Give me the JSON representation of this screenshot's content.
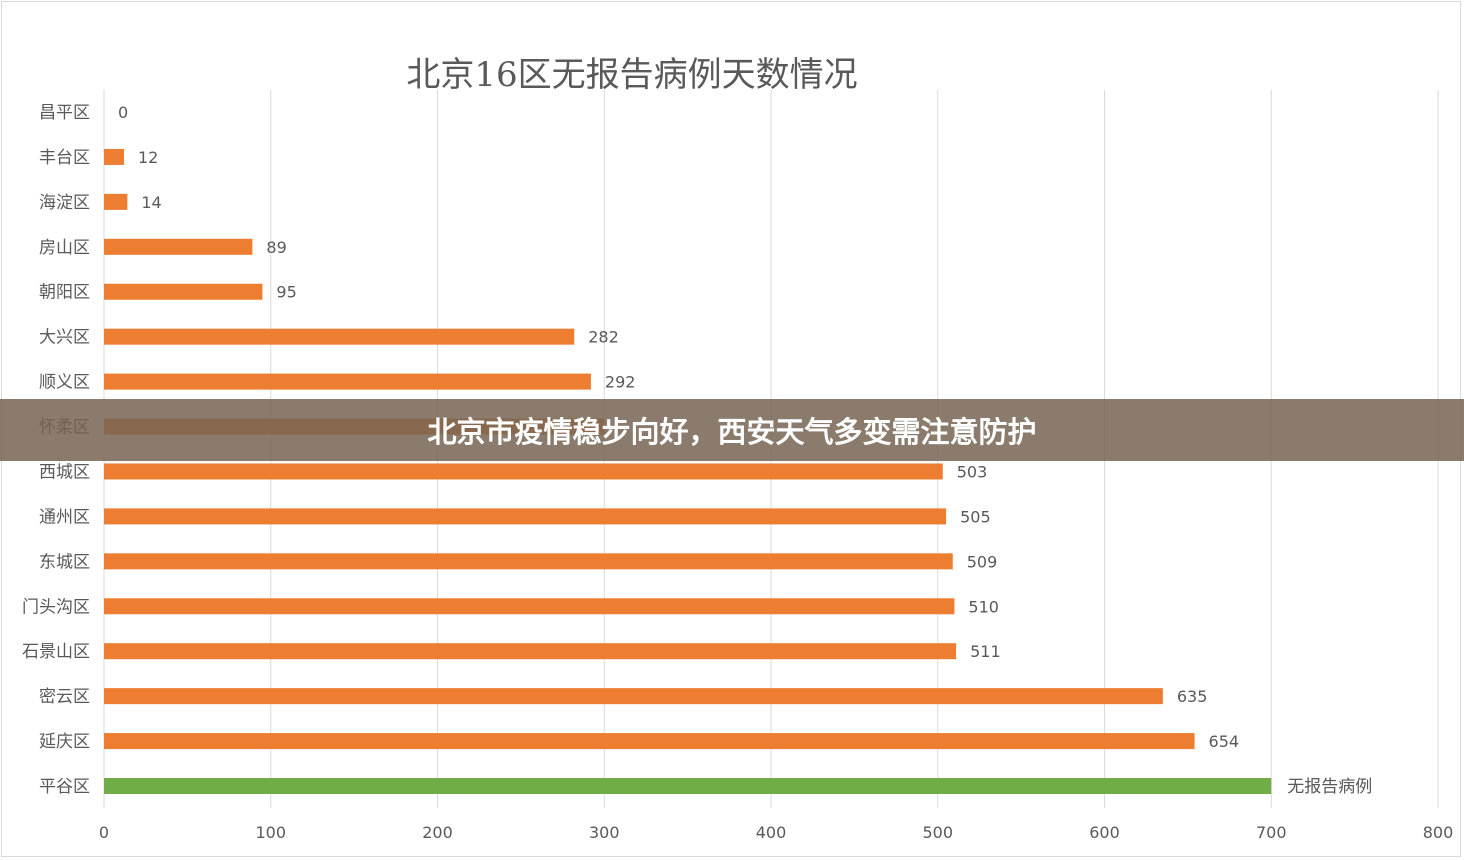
{
  "chart_data": {
    "type": "bar",
    "orientation": "horizontal",
    "title": "北京16区无报告病例天数情况",
    "categories": [
      "昌平区",
      "丰台区",
      "海淀区",
      "房山区",
      "朝阳区",
      "大兴区",
      "顺义区",
      "怀柔区",
      "西城区",
      "通州区",
      "东城区",
      "门头沟区",
      "石景山区",
      "密云区",
      "延庆区",
      "平谷区"
    ],
    "values": [
      0,
      12,
      14,
      89,
      95,
      282,
      292,
      null,
      503,
      505,
      509,
      510,
      511,
      635,
      654,
      700
    ],
    "data_labels": [
      "0",
      "12",
      "14",
      "89",
      "95",
      "282",
      "292",
      "",
      "503",
      "505",
      "509",
      "510",
      "511",
      "635",
      "654",
      "无报告病例"
    ],
    "xlim": [
      0,
      800
    ],
    "xticks": [
      "0",
      "100",
      "200",
      "300",
      "400",
      "500",
      "600",
      "700",
      "800"
    ],
    "grid": true,
    "colors": {
      "bar": "#ed7d31",
      "highlight": "#70ad47",
      "grid": "#d9d9d9",
      "text": "#595959"
    },
    "highlight_category": "平谷区"
  },
  "overlay": {
    "headline": "北京市疫情稳步向好，西安天气多变需注意防护"
  }
}
